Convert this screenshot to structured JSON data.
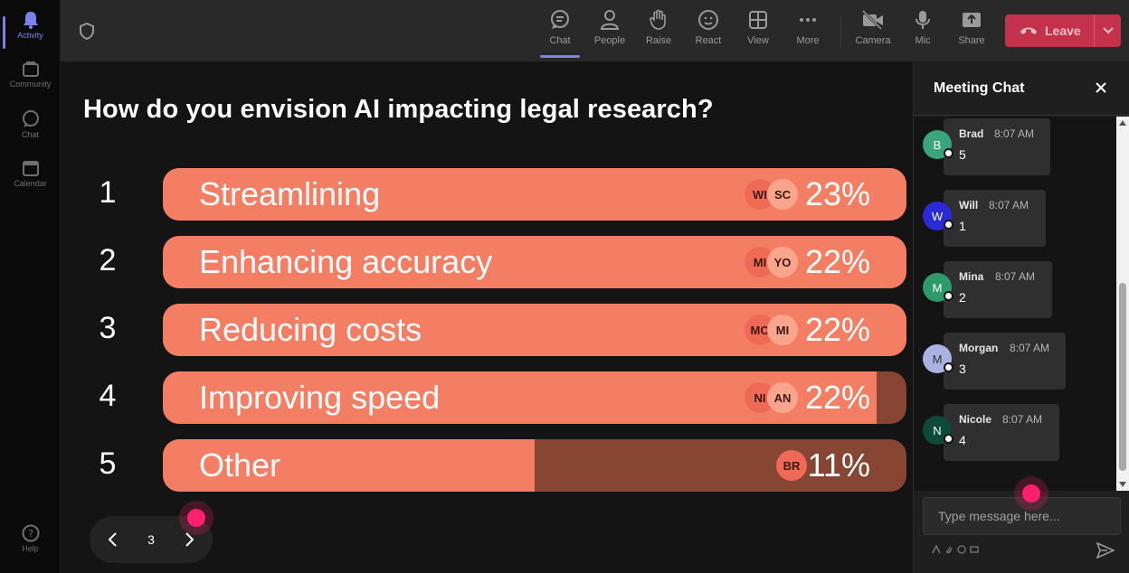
{
  "rail": {
    "items": [
      {
        "label": "Activity",
        "icon": "bell-icon"
      },
      {
        "label": "Community",
        "icon": "community-icon"
      },
      {
        "label": "Chat",
        "icon": "chat-icon"
      },
      {
        "label": "Calendar",
        "icon": "calendar-icon"
      }
    ],
    "help": {
      "label": "Help",
      "icon": "help-icon"
    }
  },
  "toolbar": {
    "buttons": [
      {
        "label": "Chat",
        "icon": "chat-icon"
      },
      {
        "label": "People",
        "icon": "people-icon"
      },
      {
        "label": "Raise",
        "icon": "hand-icon"
      },
      {
        "label": "React",
        "icon": "smiley-icon"
      },
      {
        "label": "View",
        "icon": "grid-icon"
      },
      {
        "label": "More",
        "icon": "more-icon"
      },
      {
        "label": "Camera",
        "icon": "camera-off-icon"
      },
      {
        "label": "Mic",
        "icon": "mic-icon"
      },
      {
        "label": "Share",
        "icon": "share-icon"
      }
    ],
    "leave_label": "Leave"
  },
  "poll": {
    "question": "How do you envision AI impacting legal research?",
    "options": [
      {
        "num": "1",
        "label": "Streamlining",
        "percent": "23%",
        "fill": 1.0,
        "avatars": [
          "WI",
          "SC"
        ]
      },
      {
        "num": "2",
        "label": "Enhancing accuracy",
        "percent": "22%",
        "fill": 1.0,
        "avatars": [
          "MI",
          "YO"
        ]
      },
      {
        "num": "3",
        "label": "Reducing costs",
        "percent": "22%",
        "fill": 1.0,
        "avatars": [
          "MO",
          "MI"
        ]
      },
      {
        "num": "4",
        "label": "Improving speed",
        "percent": "22%",
        "fill": 0.96,
        "avatars": [
          "NI",
          "AN"
        ]
      },
      {
        "num": "5",
        "label": "Other",
        "percent": "11%",
        "fill": 0.5,
        "avatars": [
          "BR"
        ]
      }
    ],
    "colors": {
      "fill": "#f47e63",
      "track": "#874634"
    }
  },
  "pager": {
    "page": "3"
  },
  "chat": {
    "title": "Meeting Chat",
    "messages": [
      {
        "initial": "B",
        "name": "Brad",
        "time": "8:07 AM",
        "text": "5",
        "color": "#3aa57d"
      },
      {
        "initial": "W",
        "name": "Will",
        "time": "8:07 AM",
        "text": "1",
        "color": "#2a2ad6"
      },
      {
        "initial": "M",
        "name": "Mina",
        "time": "8:07 AM",
        "text": "2",
        "color": "#2e9a6a"
      },
      {
        "initial": "M",
        "name": "Morgan",
        "time": "8:07 AM",
        "text": "3",
        "color": "#a9b2e0"
      },
      {
        "initial": "N",
        "name": "Nicole",
        "time": "8:07 AM",
        "text": "4",
        "color": "#0e4a3a"
      }
    ],
    "input_placeholder": "Type message here..."
  }
}
